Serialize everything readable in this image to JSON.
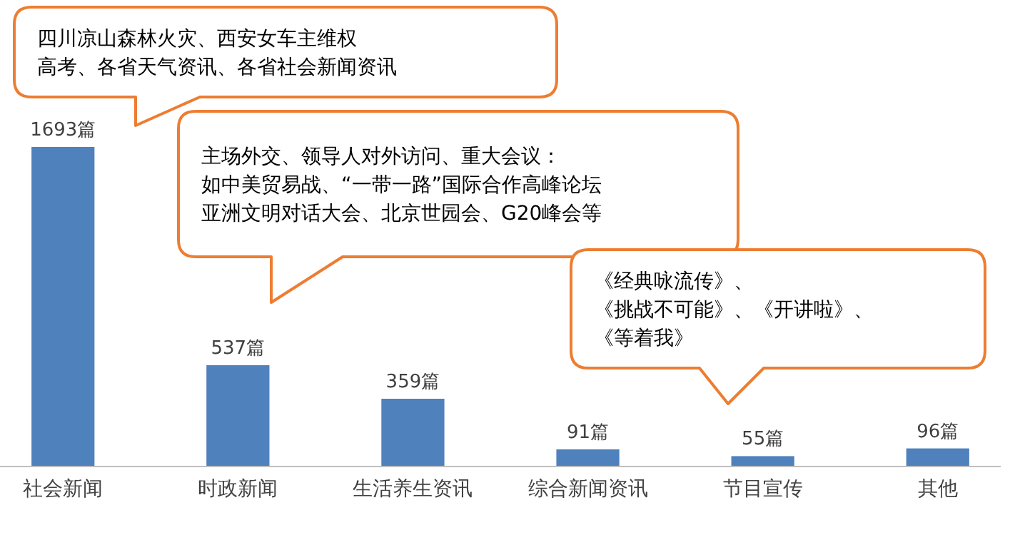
{
  "chart_data": {
    "type": "bar",
    "categories": [
      "社会新闻",
      "时政新闻",
      "生活养生资讯",
      "综合新闻资讯",
      "节目宣传",
      "其他"
    ],
    "values": [
      1693,
      537,
      359,
      91,
      55,
      96
    ],
    "value_labels": [
      "1693篇",
      "537篇",
      "359篇",
      "91篇",
      "55篇",
      "96篇"
    ],
    "color": "#4f81bd",
    "annotations": [
      "四川凉山森林火灾、西安女车主维权",
      "高考、各省天气资讯、各省社会新闻资讯",
      "主场外交、领导人对外访问、重大会议：",
      "如中美贸易战、“一带一路”国际合作高峰论坛",
      "亚洲文明对话大会、北京世园会、G20峰会等",
      "《经典咏流传》、",
      "《挑战不可能》、《开讲啦》、",
      "《等着我》"
    ]
  }
}
